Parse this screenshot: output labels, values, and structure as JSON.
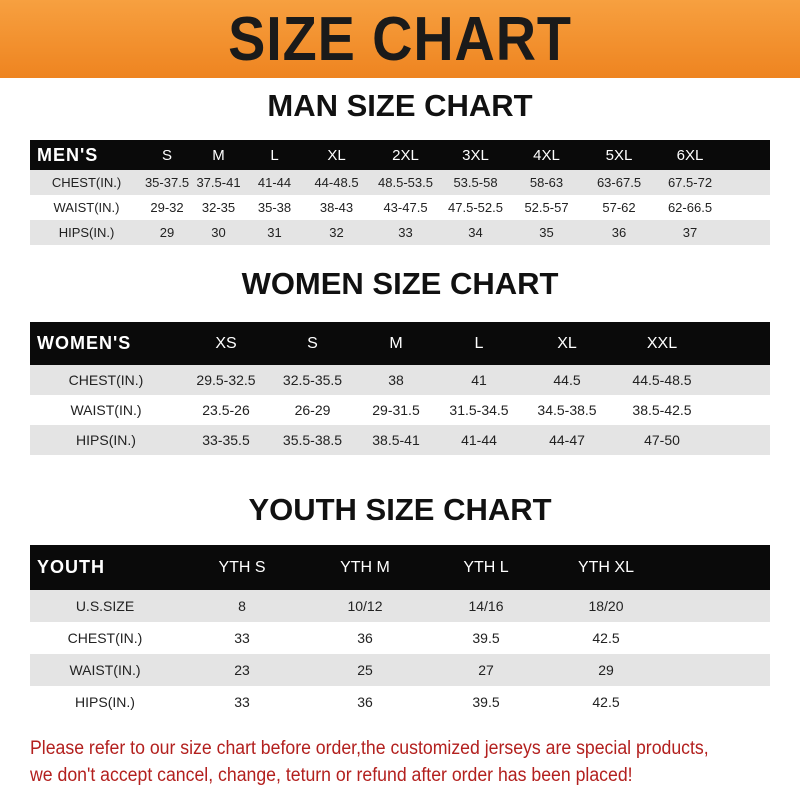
{
  "title": "SIZE CHART",
  "men": {
    "title": "MAN SIZE CHART",
    "header": [
      "MEN'S",
      "S",
      "M",
      "L",
      "XL",
      "2XL",
      "3XL",
      "4XL",
      "5XL",
      "6XL"
    ],
    "rows": [
      [
        "CHEST(IN.)",
        "35-37.5",
        "37.5-41",
        "41-44",
        "44-48.5",
        "48.5-53.5",
        "53.5-58",
        "58-63",
        "63-67.5",
        "67.5-72"
      ],
      [
        "WAIST(IN.)",
        "29-32",
        "32-35",
        "35-38",
        "38-43",
        "43-47.5",
        "47.5-52.5",
        "52.5-57",
        "57-62",
        "62-66.5"
      ],
      [
        "HIPS(IN.)",
        "29",
        "30",
        "31",
        "32",
        "33",
        "34",
        "35",
        "36",
        "37"
      ]
    ]
  },
  "women": {
    "title": "WOMEN SIZE CHART",
    "header": [
      "WOMEN'S",
      "XS",
      "S",
      "M",
      "L",
      "XL",
      "XXL"
    ],
    "rows": [
      [
        "CHEST(IN.)",
        "29.5-32.5",
        "32.5-35.5",
        "38",
        "41",
        "44.5",
        "44.5-48.5"
      ],
      [
        "WAIST(IN.)",
        "23.5-26",
        "26-29",
        "29-31.5",
        "31.5-34.5",
        "34.5-38.5",
        "38.5-42.5"
      ],
      [
        "HIPS(IN.)",
        "33-35.5",
        "35.5-38.5",
        "38.5-41",
        "41-44",
        "44-47",
        "47-50"
      ]
    ]
  },
  "youth": {
    "title": "YOUTH SIZE CHART",
    "header": [
      "YOUTH",
      "YTH S",
      "YTH M",
      "YTH L",
      "YTH XL"
    ],
    "rows": [
      [
        "U.S.SIZE",
        "8",
        "10/12",
        "14/16",
        "18/20"
      ],
      [
        "CHEST(IN.)",
        "33",
        "36",
        "39.5",
        "42.5"
      ],
      [
        "WAIST(IN.)",
        "23",
        "25",
        "27",
        "29"
      ],
      [
        "HIPS(IN.)",
        "33",
        "36",
        "39.5",
        "42.5"
      ]
    ]
  },
  "note": [
    "Please refer to our size chart before order,the customized jerseys are special products,",
    "we don't accept cancel, change, teturn or refund after order has been placed!"
  ]
}
